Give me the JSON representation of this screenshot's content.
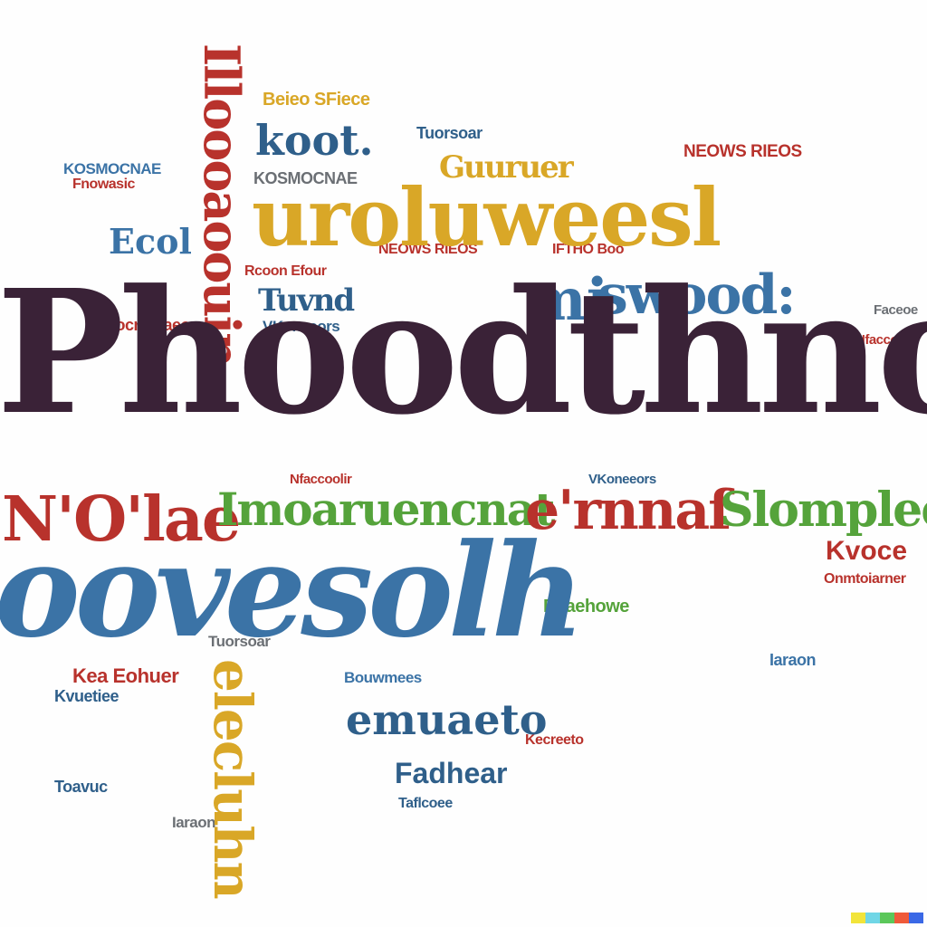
{
  "cloud": {
    "main_word": "Phoodthnovin",
    "second_word": "oovesolh",
    "upper_word": "uroluweesl",
    "vertical_red": "Illoooaoouin",
    "vertical_gold": "elecluhn",
    "mid_words": {
      "a": "Imoaruencnat",
      "b": "e'rnnaf",
      "c": "Slomplee",
      "d": "N'O'lae",
      "e": "emuaeto",
      "f": "Fadhear",
      "g": "koot.",
      "h": "mi",
      "i": "swood:",
      "j": "Guuruer",
      "k": "Kvoce",
      "l": "Ecol",
      "m": "Tuvnd"
    },
    "noise_lines": [
      "KOSMOCNAE",
      "Tuorsoar",
      "Rocruhtaeor",
      "Fnowasic",
      "VKoneeors",
      "Beieo SFiece",
      "NEOWS RIEOS",
      "IFTHO Boo",
      "Faceoe",
      "Rcoon Efour",
      "Nfaccoolir",
      "Kea Eohuer",
      "Kvuetiee",
      "Bouwmees",
      "Kecreeto",
      "Toavuc",
      "Iaraon",
      "Beaehowe",
      "Onmtoiarner",
      "Taflcoee"
    ]
  },
  "colors": {
    "purple": "#3a2237",
    "blue": "#3b73a6",
    "gold": "#d9a727",
    "red": "#b8322c",
    "green": "#55a33b",
    "gray": "#6b6f74"
  },
  "brand_bar": [
    "#f2e43a",
    "#70d6e6",
    "#5bc75a",
    "#ef5a3a",
    "#3a68e6"
  ]
}
